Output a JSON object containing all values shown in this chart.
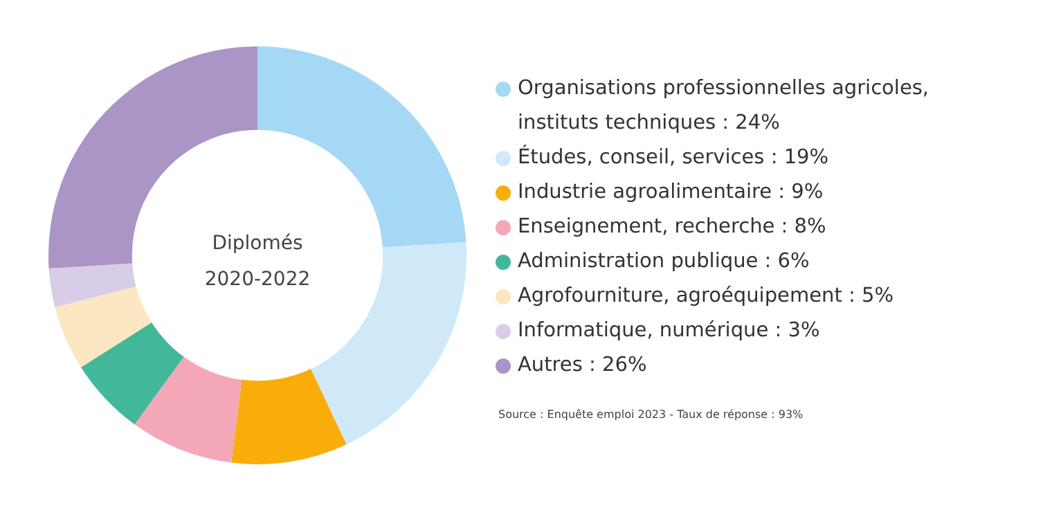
{
  "chart_data": {
    "type": "donut",
    "title": "Diplomés\n2020-2022",
    "categories": [
      "Organisations professionnelles agricoles, instituts techniques",
      "Études, conseil, services",
      "Industrie agroalimentaire",
      "Enseignement, recherche",
      "Administration publique",
      "Agrofourniture, agroéquipement",
      "Informatique, numérique",
      "Autres"
    ],
    "values": [
      24,
      19,
      9,
      8,
      6,
      5,
      3,
      26
    ],
    "value_labels": [
      "24%",
      "19%",
      "9%",
      "8%",
      "6%",
      "5%",
      "3%",
      "26%"
    ],
    "colors": [
      "#a5d8f5",
      "#cfe9f9",
      "#f9ad0b",
      "#f4a7b7",
      "#43b79a",
      "#fde6c2",
      "#d7cde7",
      "#ab94c6"
    ],
    "legend": "right",
    "annotations": [
      "Source : Enquête emploi 2023 - Taux de réponse : 93%"
    ]
  }
}
